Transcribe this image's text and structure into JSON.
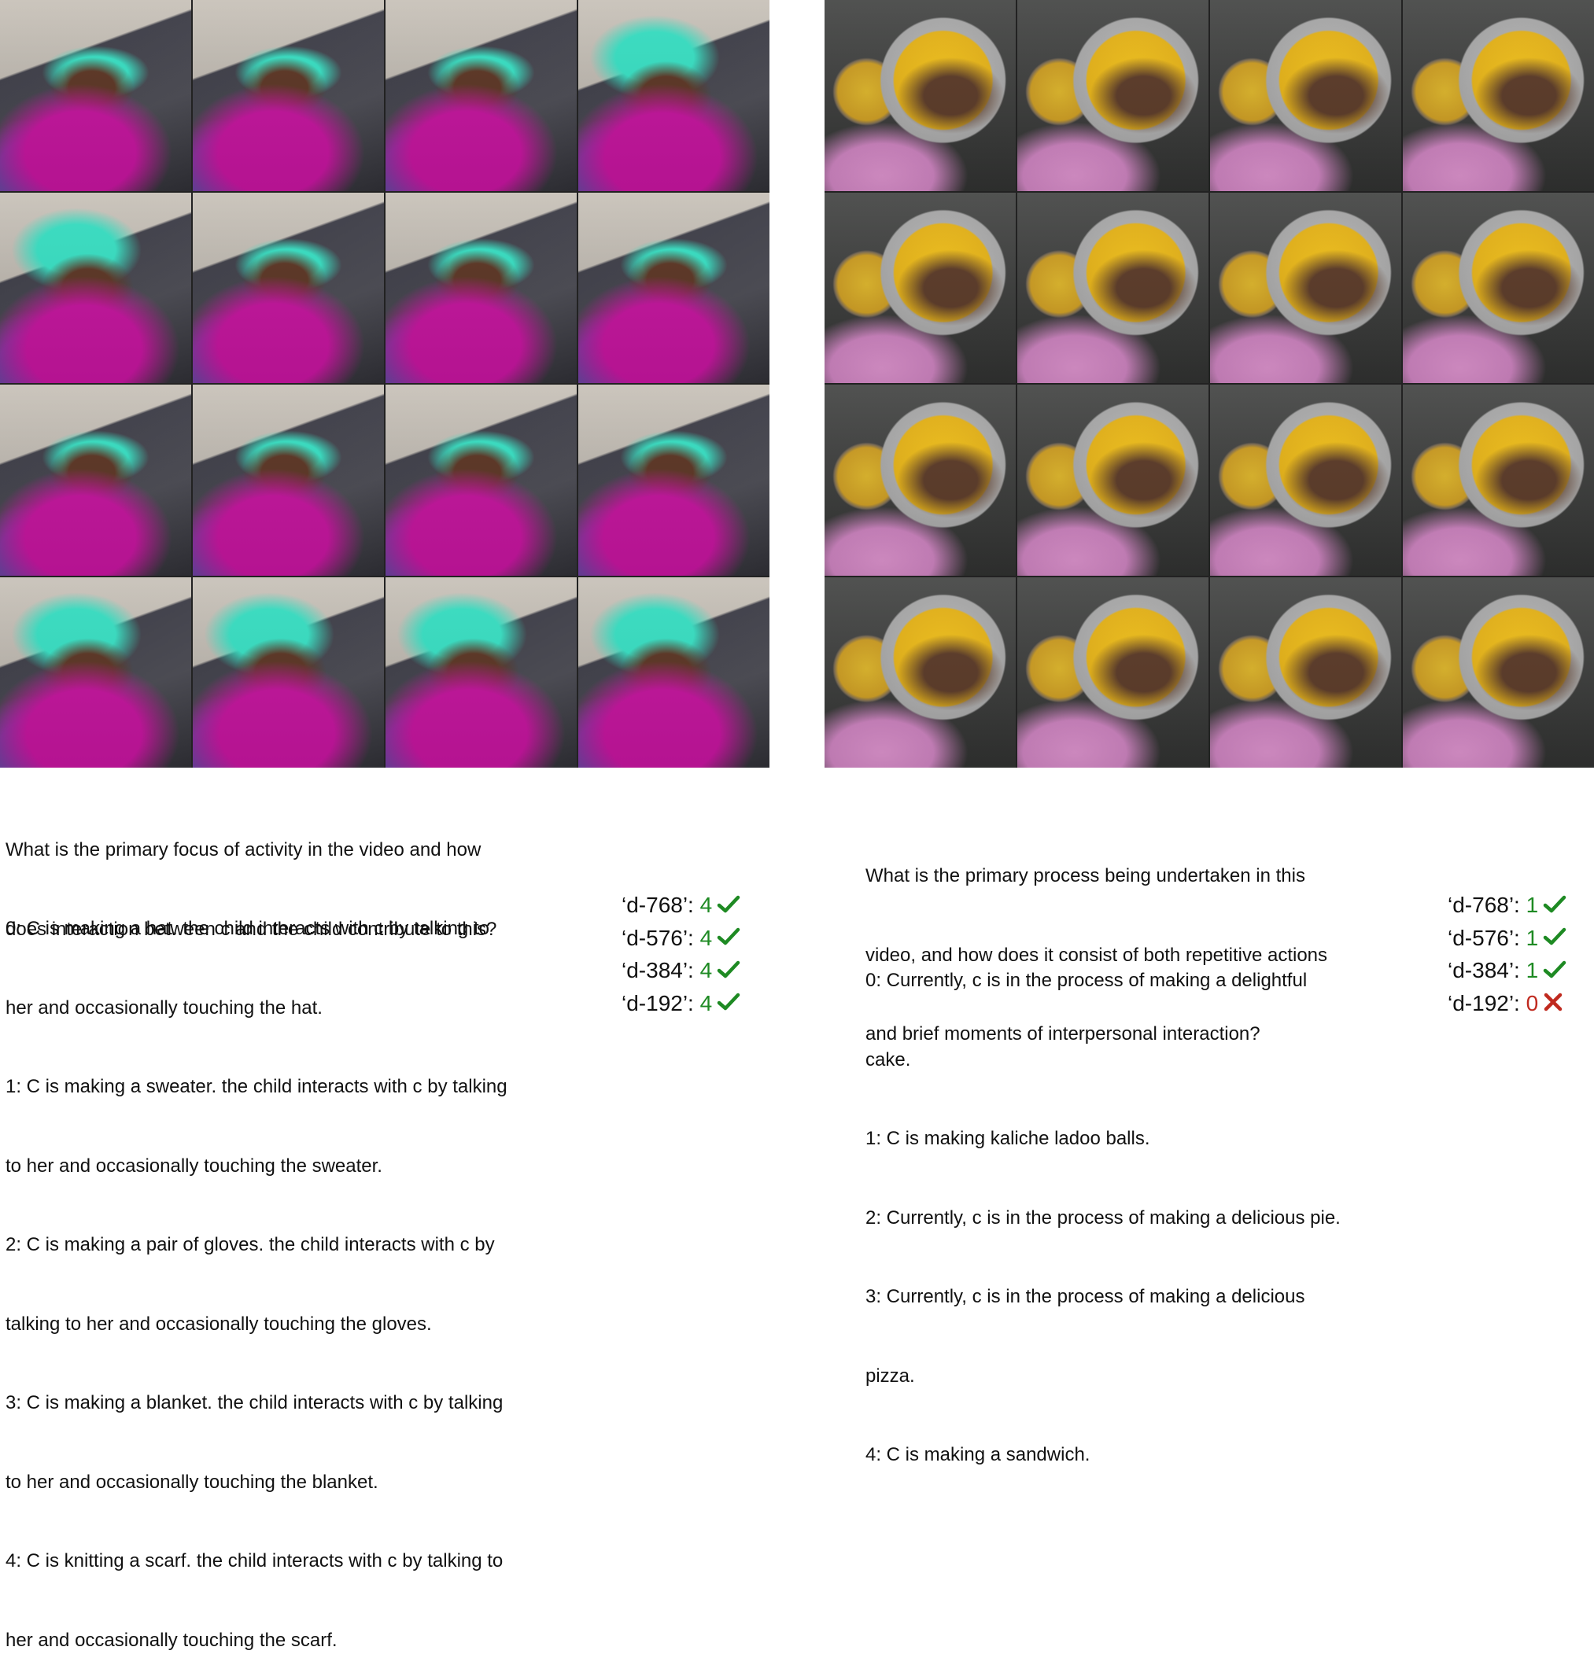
{
  "left": {
    "frames_scene": "knitting",
    "question": [
      "What is the primary focus of activity in the video and how",
      "does interaction between c and the child contribute to this?"
    ],
    "options": [
      "0: C is making a hat. the child interacts with c by talking to",
      "her and occasionally touching the hat.",
      "1: C is making a sweater. the child interacts with c by talking",
      "to her and occasionally touching the sweater.",
      "2: C is making a pair of gloves. the child interacts with c by",
      "talking to her and occasionally touching the gloves.",
      "3: C is making a blanket. the child interacts with c by talking",
      "to her and occasionally touching the blanket.",
      "4: C is knitting a scarf. the child interacts with c by talking to",
      "her and occasionally touching the scarf."
    ],
    "scores": [
      {
        "label": "‘d-768’: ",
        "value": "4",
        "correct": true,
        "icon": "check-icon"
      },
      {
        "label": "‘d-576’: ",
        "value": "4",
        "correct": true,
        "icon": "check-icon"
      },
      {
        "label": "‘d-384’: ",
        "value": "4",
        "correct": true,
        "icon": "check-icon"
      },
      {
        "label": "‘d-192’: ",
        "value": "4",
        "correct": true,
        "icon": "check-icon"
      }
    ]
  },
  "right": {
    "frames_scene": "cooking",
    "question": [
      "What is the primary process being undertaken in this",
      "video, and how does it consist of both repetitive actions",
      "and brief moments of interpersonal interaction?"
    ],
    "options": [
      "0: Currently, c is in the process of making a delightful",
      "cake.",
      "1: C is making kaliche ladoo balls.",
      "2: Currently, c is in the process of making a delicious pie.",
      "3: Currently, c is in the process of making a delicious",
      "pizza.",
      "4: C is making a sandwich."
    ],
    "scores": [
      {
        "label": "‘d-768’: ",
        "value": "1",
        "correct": true,
        "icon": "check-icon"
      },
      {
        "label": "‘d-576’: ",
        "value": "1",
        "correct": true,
        "icon": "check-icon"
      },
      {
        "label": "‘d-384’: ",
        "value": "1",
        "correct": true,
        "icon": "check-icon"
      },
      {
        "label": "‘d-192’: ",
        "value": "0",
        "correct": false,
        "icon": "cross-icon"
      }
    ]
  },
  "colors": {
    "correct": "#1e8a23",
    "incorrect": "#c02a1f"
  }
}
